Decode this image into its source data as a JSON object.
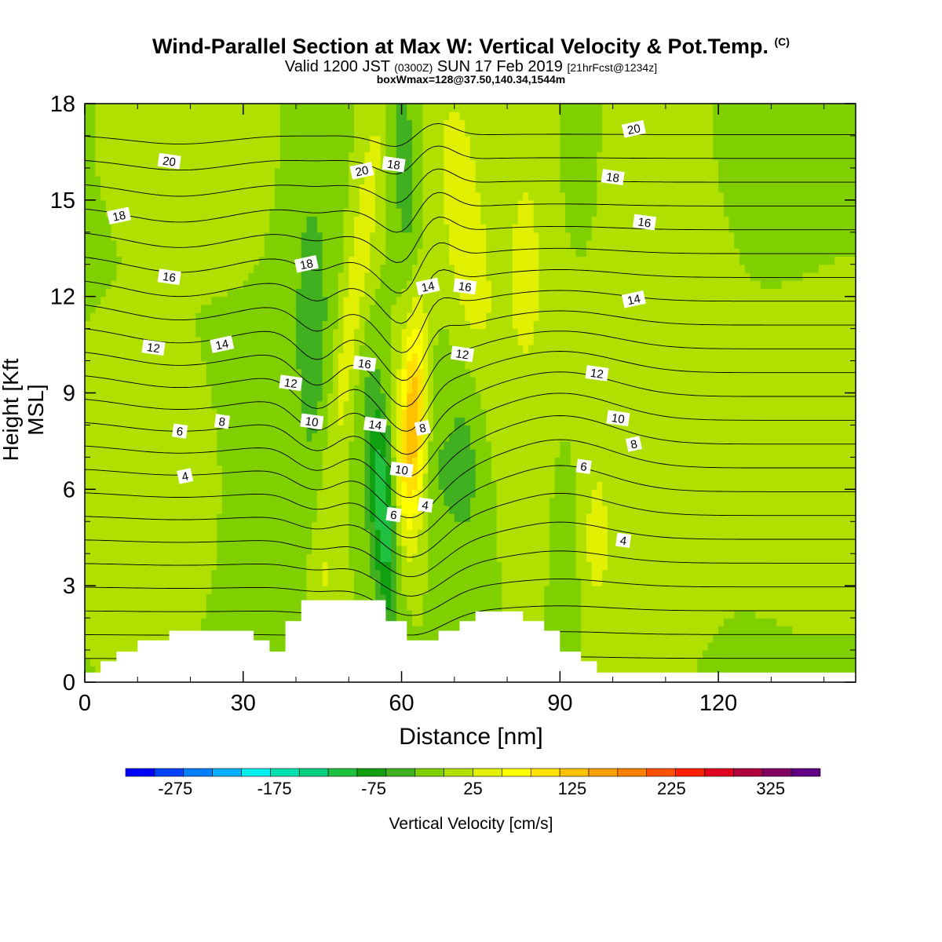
{
  "title": {
    "main": "Wind-Parallel Section at Max W: Vertical Velocity & Pot.Temp.",
    "copyright": "(C)",
    "valid_prefix": "Valid 1200 JST",
    "valid_utc": "(0300Z)",
    "valid_date": "SUN 17 Feb 2019",
    "forecast": "[21hrFcst@1234z]",
    "boxmax": "boxWmax=128@37.50,140.34,1544m"
  },
  "chart_data": {
    "type": "heatmap",
    "xlabel": "Distance [nm]",
    "ylabel": "Height [Kft MSL]",
    "xlim": [
      0,
      146
    ],
    "ylim": [
      0,
      18
    ],
    "x_ticks": [
      "0",
      "30",
      "60",
      "90",
      "120"
    ],
    "x_tick_values": [
      0,
      30,
      60,
      90,
      120
    ],
    "y_ticks": [
      "0",
      "3",
      "6",
      "9",
      "12",
      "15",
      "18"
    ],
    "y_tick_values": [
      0,
      3,
      6,
      9,
      12,
      15,
      18
    ],
    "grid": false,
    "colorbar": {
      "label": "Vertical Velocity [cm/s]",
      "tick_labels": [
        "-275",
        "-175",
        "-75",
        "25",
        "125",
        "225",
        "325"
      ],
      "tick_values": [
        -275,
        -175,
        -75,
        25,
        125,
        225,
        325
      ],
      "range": [
        -325,
        375
      ],
      "colors": [
        "#0000ff",
        "#0040ff",
        "#0080ff",
        "#00b0ff",
        "#00eeee",
        "#00e0b0",
        "#00d080",
        "#20c040",
        "#10a010",
        "#40b020",
        "#80d000",
        "#b0e000",
        "#e0f000",
        "#ffff00",
        "#ffe000",
        "#ffc000",
        "#ffa000",
        "#ff8000",
        "#ff5000",
        "#ff2000",
        "#e00020",
        "#b00040",
        "#800060",
        "#600080"
      ]
    },
    "terrain": [
      [
        0,
        0.3
      ],
      [
        3,
        0.3
      ],
      [
        3,
        0.65
      ],
      [
        6,
        0.65
      ],
      [
        6,
        0.95
      ],
      [
        10,
        0.95
      ],
      [
        10,
        1.3
      ],
      [
        16,
        1.3
      ],
      [
        16,
        1.6
      ],
      [
        32,
        1.6
      ],
      [
        32,
        1.3
      ],
      [
        35,
        1.3
      ],
      [
        35,
        0.95
      ],
      [
        38,
        0.95
      ],
      [
        38,
        1.9
      ],
      [
        41,
        1.9
      ],
      [
        41,
        2.55
      ],
      [
        57,
        2.55
      ],
      [
        57,
        1.9
      ],
      [
        61,
        1.9
      ],
      [
        61,
        1.3
      ],
      [
        67,
        1.3
      ],
      [
        67,
        1.6
      ],
      [
        71,
        1.6
      ],
      [
        71,
        1.9
      ],
      [
        74,
        1.9
      ],
      [
        74,
        2.2
      ],
      [
        83,
        2.2
      ],
      [
        83,
        1.9
      ],
      [
        87,
        1.9
      ],
      [
        87,
        1.6
      ],
      [
        90,
        1.6
      ],
      [
        90,
        0.95
      ],
      [
        94,
        0.95
      ],
      [
        94,
        0.65
      ],
      [
        97,
        0.65
      ],
      [
        97,
        0.3
      ],
      [
        146,
        0.3
      ]
    ],
    "isentrope_labels": [
      {
        "text": "20",
        "x": 16,
        "y": 16.2
      },
      {
        "text": "18",
        "x": 6.5,
        "y": 14.5
      },
      {
        "text": "16",
        "x": 16,
        "y": 12.6
      },
      {
        "text": "12",
        "x": 13,
        "y": 10.4
      },
      {
        "text": "14",
        "x": 26,
        "y": 10.5
      },
      {
        "text": "6",
        "x": 18,
        "y": 7.8
      },
      {
        "text": "8",
        "x": 26,
        "y": 8.1
      },
      {
        "text": "4",
        "x": 19,
        "y": 6.4
      },
      {
        "text": "12",
        "x": 39,
        "y": 9.3
      },
      {
        "text": "10",
        "x": 43,
        "y": 8.1
      },
      {
        "text": "18",
        "x": 42,
        "y": 13.0
      },
      {
        "text": "16",
        "x": 53,
        "y": 9.9
      },
      {
        "text": "14",
        "x": 55,
        "y": 8.0
      },
      {
        "text": "20",
        "x": 52.5,
        "y": 15.9
      },
      {
        "text": "18",
        "x": 58.5,
        "y": 16.1
      },
      {
        "text": "10",
        "x": 60,
        "y": 6.6
      },
      {
        "text": "8",
        "x": 64,
        "y": 7.9
      },
      {
        "text": "6",
        "x": 58.5,
        "y": 5.2
      },
      {
        "text": "4",
        "x": 64.5,
        "y": 5.5
      },
      {
        "text": "14",
        "x": 65,
        "y": 12.3
      },
      {
        "text": "16",
        "x": 72,
        "y": 12.3
      },
      {
        "text": "12",
        "x": 71.5,
        "y": 10.2
      },
      {
        "text": "20",
        "x": 104,
        "y": 17.2
      },
      {
        "text": "18",
        "x": 100,
        "y": 15.7
      },
      {
        "text": "16",
        "x": 106,
        "y": 14.3
      },
      {
        "text": "14",
        "x": 104,
        "y": 11.9
      },
      {
        "text": "12",
        "x": 97,
        "y": 9.6
      },
      {
        "text": "10",
        "x": 101,
        "y": 8.2
      },
      {
        "text": "8",
        "x": 104,
        "y": 7.4
      },
      {
        "text": "6",
        "x": 94.5,
        "y": 6.7
      },
      {
        "text": "4",
        "x": 102,
        "y": 4.4
      }
    ]
  }
}
